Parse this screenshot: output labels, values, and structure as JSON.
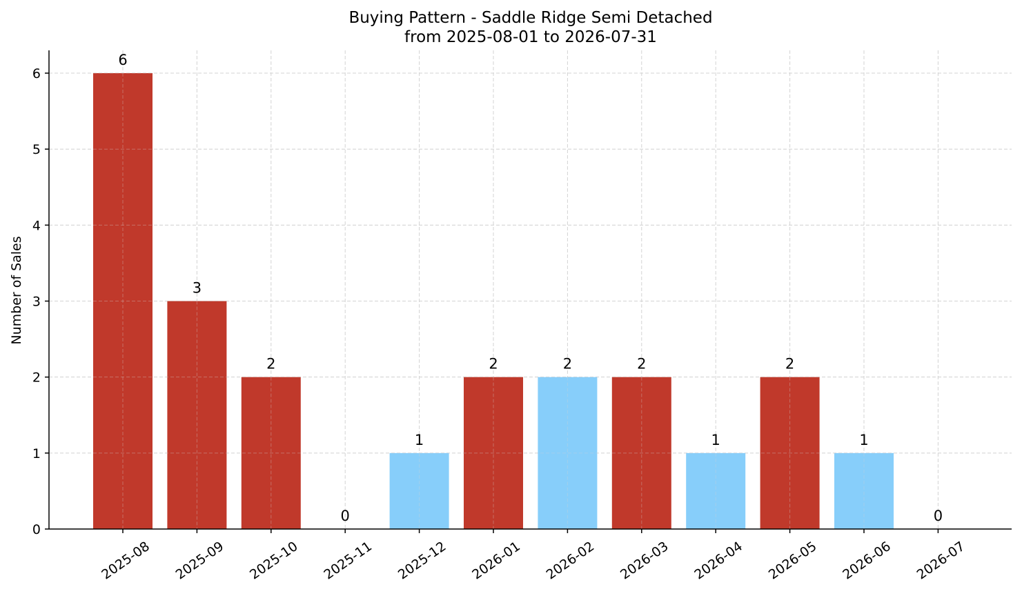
{
  "chart_data": {
    "type": "bar",
    "title": "Buying Pattern - Saddle Ridge Semi Detached",
    "subtitle": "from 2025-08-01 to 2026-07-31",
    "xlabel": "",
    "ylabel": "Number of Sales",
    "categories": [
      "2025-08",
      "2025-09",
      "2025-10",
      "2025-11",
      "2025-12",
      "2026-01",
      "2026-02",
      "2026-03",
      "2026-04",
      "2026-05",
      "2026-06",
      "2026-07"
    ],
    "values": [
      6,
      3,
      2,
      0,
      1,
      2,
      2,
      2,
      1,
      2,
      1,
      0
    ],
    "bar_colors": [
      "#c0392b",
      "#c0392b",
      "#c0392b",
      "#c0392b",
      "#87cefa",
      "#c0392b",
      "#87cefa",
      "#c0392b",
      "#87cefa",
      "#c0392b",
      "#87cefa",
      "#c0392b"
    ],
    "ylim": [
      0,
      6.3
    ],
    "yticks": [
      0,
      1,
      2,
      3,
      4,
      5,
      6
    ],
    "grid": true,
    "legend": false
  }
}
